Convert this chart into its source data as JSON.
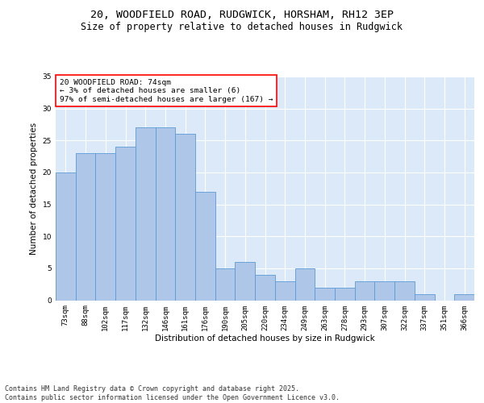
{
  "title_line1": "20, WOODFIELD ROAD, RUDGWICK, HORSHAM, RH12 3EP",
  "title_line2": "Size of property relative to detached houses in Rudgwick",
  "xlabel": "Distribution of detached houses by size in Rudgwick",
  "ylabel": "Number of detached properties",
  "bar_labels": [
    "73sqm",
    "88sqm",
    "102sqm",
    "117sqm",
    "132sqm",
    "146sqm",
    "161sqm",
    "176sqm",
    "190sqm",
    "205sqm",
    "220sqm",
    "234sqm",
    "249sqm",
    "263sqm",
    "278sqm",
    "293sqm",
    "307sqm",
    "322sqm",
    "337sqm",
    "351sqm",
    "366sqm"
  ],
  "bar_values": [
    20,
    23,
    23,
    24,
    27,
    27,
    26,
    17,
    5,
    6,
    4,
    3,
    5,
    2,
    2,
    3,
    3,
    3,
    1,
    0,
    1
  ],
  "bar_color": "#aec6e8",
  "bar_edge_color": "#5b9bd5",
  "annotation_text": "20 WOODFIELD ROAD: 74sqm\n← 3% of detached houses are smaller (6)\n97% of semi-detached houses are larger (167) →",
  "annotation_box_color": "white",
  "annotation_box_edge_color": "red",
  "ylim": [
    0,
    35
  ],
  "yticks": [
    0,
    5,
    10,
    15,
    20,
    25,
    30,
    35
  ],
  "bg_color": "#dce9f8",
  "footer_text": "Contains HM Land Registry data © Crown copyright and database right 2025.\nContains public sector information licensed under the Open Government Licence v3.0.",
  "title_fontsize": 9.5,
  "subtitle_fontsize": 8.5,
  "axis_label_fontsize": 7.5,
  "tick_fontsize": 6.5,
  "annotation_fontsize": 6.8,
  "footer_fontsize": 6.0
}
